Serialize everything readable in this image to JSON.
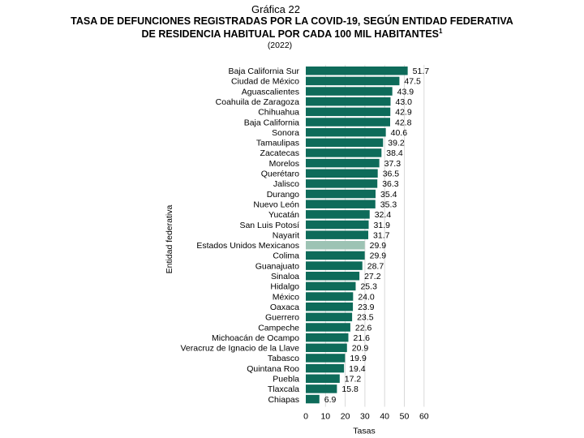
{
  "header": {
    "kicker": "Gráfica 22",
    "title_line1": "Tasa de defunciones registradas por la COVID-19, según entidad federativa",
    "title_line2": "de residencia habitual por cada 100 mil habitantes",
    "title_footnote": "1",
    "year": "(2022)"
  },
  "chart_data": {
    "type": "bar",
    "orientation": "horizontal",
    "xlabel": "Tasas",
    "ylabel": "Entidad federativa",
    "xlim": [
      0,
      60
    ],
    "xticks": [
      0,
      10,
      20,
      30,
      40,
      50,
      60
    ],
    "grid": "vertical",
    "bar_color": "#0e6b5a",
    "highlight_color": "#9dc3b4",
    "highlight_category": "Estados Unidos Mexicanos",
    "categories": [
      "Baja California Sur",
      "Ciudad de México",
      "Aguascalientes",
      "Coahuila de Zaragoza",
      "Chihuahua",
      "Baja California",
      "Sonora",
      "Tamaulipas",
      "Zacatecas",
      "Morelos",
      "Querétaro",
      "Jalisco",
      "Durango",
      "Nuevo León",
      "Yucatán",
      "San Luis Potosí",
      "Nayarit",
      "Estados Unidos Mexicanos",
      "Colima",
      "Guanajuato",
      "Sinaloa",
      "Hidalgo",
      "México",
      "Oaxaca",
      "Guerrero",
      "Campeche",
      "Michoacán de Ocampo",
      "Veracruz de Ignacio de la Llave",
      "Tabasco",
      "Quintana Roo",
      "Puebla",
      "Tlaxcala",
      "Chiapas"
    ],
    "values": [
      51.7,
      47.5,
      43.9,
      43.0,
      42.9,
      42.8,
      40.6,
      39.2,
      38.4,
      37.3,
      36.5,
      36.3,
      35.4,
      35.3,
      32.4,
      31.9,
      31.7,
      29.9,
      29.9,
      28.7,
      27.2,
      25.3,
      24.0,
      23.9,
      23.5,
      22.6,
      21.6,
      20.9,
      19.9,
      19.4,
      17.2,
      15.8,
      6.9
    ],
    "value_labels": [
      "51.7",
      "47.5",
      "43.9",
      "43.0",
      "42.9",
      "42.8",
      "40.6",
      "39.2",
      "38.4",
      "37.3",
      "36.5",
      "36.3",
      "35.4",
      "35.3",
      "32.4",
      "31.9",
      "31.7",
      "29.9",
      "29.9",
      "28.7",
      "27.2",
      "25.3",
      "24.0",
      "23.9",
      "23.5",
      "22.6",
      "21.6",
      "20.9",
      "19.9",
      "19.4",
      "17.2",
      "15.8",
      "6.9"
    ]
  }
}
